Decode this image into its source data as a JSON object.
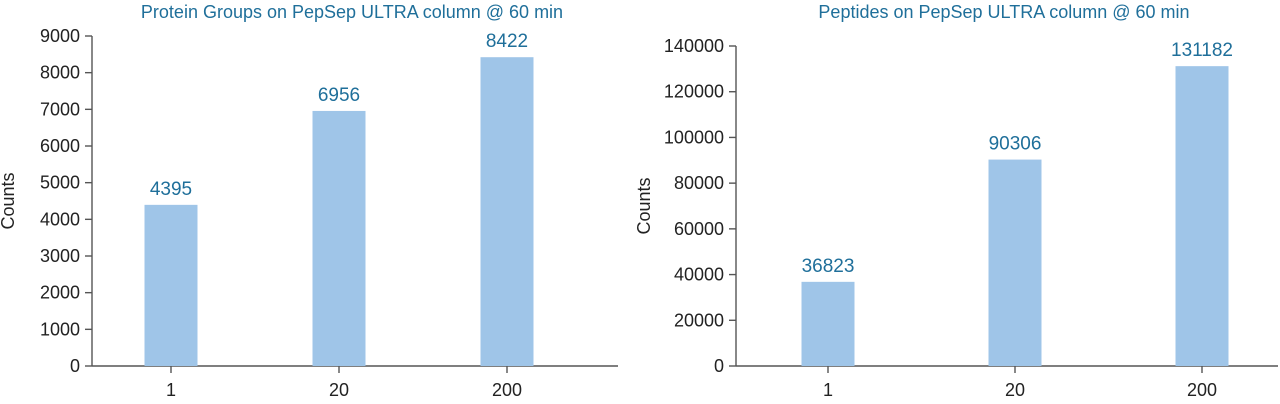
{
  "chart_data": [
    {
      "type": "bar",
      "title": "Protein Groups on PepSep ULTRA column @ 60 min",
      "xlabel": "",
      "ylabel": "Counts",
      "categories": [
        "1",
        "20",
        "200"
      ],
      "values": [
        4395,
        6956,
        8422
      ],
      "ylim": [
        0,
        9000
      ],
      "yticks": [
        0,
        1000,
        2000,
        3000,
        4000,
        5000,
        6000,
        7000,
        8000,
        9000
      ],
      "bar_color": "#9fc5e8",
      "label_color": "#1f6f9a",
      "grid": false
    },
    {
      "type": "bar",
      "title": "Peptides on PepSep ULTRA column @ 60 min",
      "xlabel": "",
      "ylabel": "Counts",
      "categories": [
        "1",
        "20",
        "200"
      ],
      "values": [
        36823,
        90306,
        131182
      ],
      "ylim": [
        0,
        140000
      ],
      "yticks": [
        0,
        20000,
        40000,
        60000,
        80000,
        100000,
        120000,
        140000
      ],
      "bar_color": "#9fc5e8",
      "label_color": "#1f6f9a",
      "grid": false
    }
  ]
}
